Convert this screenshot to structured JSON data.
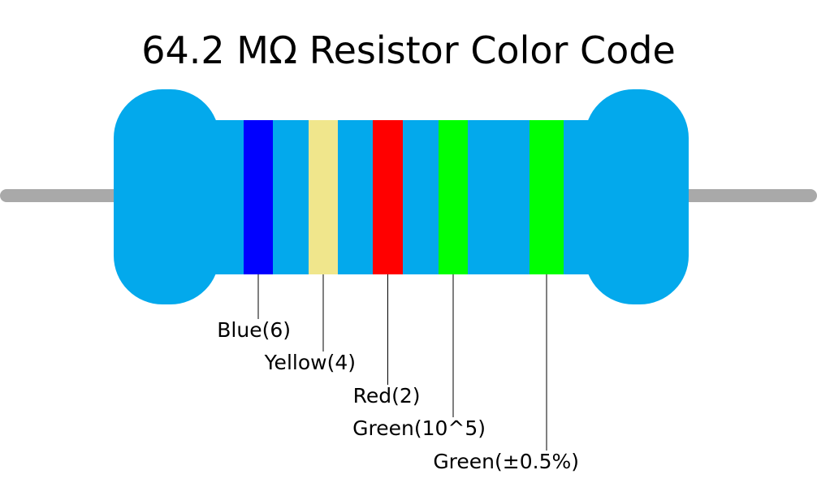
{
  "title": "64.2 MΩ Resistor Color Code",
  "bands": [
    {
      "label": "Blue(6)",
      "color": "#0000ff"
    },
    {
      "label": "Yellow(4)",
      "color": "#f0e68c"
    },
    {
      "label": "Red(2)",
      "color": "#ff0000"
    },
    {
      "label": "Green(10^5)",
      "color": "#00ff00"
    },
    {
      "label": "Green(±0.5%)",
      "color": "#00ff00"
    }
  ]
}
